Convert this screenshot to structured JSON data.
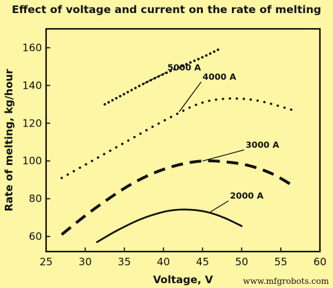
{
  "watermark": "www.mfgrobots.com",
  "chart_data": {
    "type": "line",
    "title": "Effect of voltage and current on the rate of melting",
    "xlabel": "Voltage, V",
    "ylabel": "Rate of melting, kg/hour",
    "xlim": [
      25,
      60
    ],
    "ylim": [
      52,
      170
    ],
    "xticks": [
      25,
      30,
      35,
      40,
      45,
      50,
      55,
      60
    ],
    "yticks": [
      60,
      80,
      100,
      120,
      140,
      160
    ],
    "grid": false,
    "legend": "inline labels with pointer lines",
    "series": [
      {
        "name": "5000 A",
        "style": "dense-dotted",
        "points": [
          [
            32.5,
            130
          ],
          [
            35,
            135.5
          ],
          [
            37.5,
            141
          ],
          [
            40,
            146
          ],
          [
            42.5,
            150.5
          ],
          [
            45,
            155
          ],
          [
            47,
            159
          ]
        ]
      },
      {
        "name": "4000 A",
        "style": "dotted",
        "points": [
          [
            27,
            91
          ],
          [
            30,
            98
          ],
          [
            33,
            105
          ],
          [
            36,
            112
          ],
          [
            39,
            119
          ],
          [
            42,
            125.5
          ],
          [
            44,
            129.5
          ],
          [
            46,
            132
          ],
          [
            48,
            133
          ],
          [
            50,
            133
          ],
          [
            52,
            132
          ],
          [
            54,
            130
          ],
          [
            56.5,
            127
          ]
        ]
      },
      {
        "name": "3000 A",
        "style": "dashed",
        "points": [
          [
            27,
            61
          ],
          [
            30,
            71
          ],
          [
            33,
            80
          ],
          [
            36,
            88
          ],
          [
            39,
            94
          ],
          [
            42,
            98
          ],
          [
            45,
            100
          ],
          [
            48,
            99.5
          ],
          [
            51,
            97.5
          ],
          [
            54,
            93
          ],
          [
            56.5,
            87
          ]
        ]
      },
      {
        "name": "2000 A",
        "style": "solid",
        "points": [
          [
            31.5,
            57
          ],
          [
            34,
            63
          ],
          [
            37,
            69
          ],
          [
            40,
            73
          ],
          [
            42,
            74.2
          ],
          [
            44,
            74
          ],
          [
            46,
            72.5
          ],
          [
            48,
            69.5
          ],
          [
            50,
            65.5
          ]
        ]
      }
    ],
    "annotations": [
      {
        "text": "5000 A",
        "x": 40.5,
        "y": 148,
        "points_to": [
          37.5,
          141
        ]
      },
      {
        "text": "4000 A",
        "x": 45,
        "y": 143,
        "points_to": [
          42,
          126
        ]
      },
      {
        "text": "3000 A",
        "x": 50.5,
        "y": 107,
        "points_to": [
          45,
          100
        ]
      },
      {
        "text": "2000 A",
        "x": 48.5,
        "y": 80,
        "points_to": [
          46,
          73
        ]
      }
    ]
  }
}
